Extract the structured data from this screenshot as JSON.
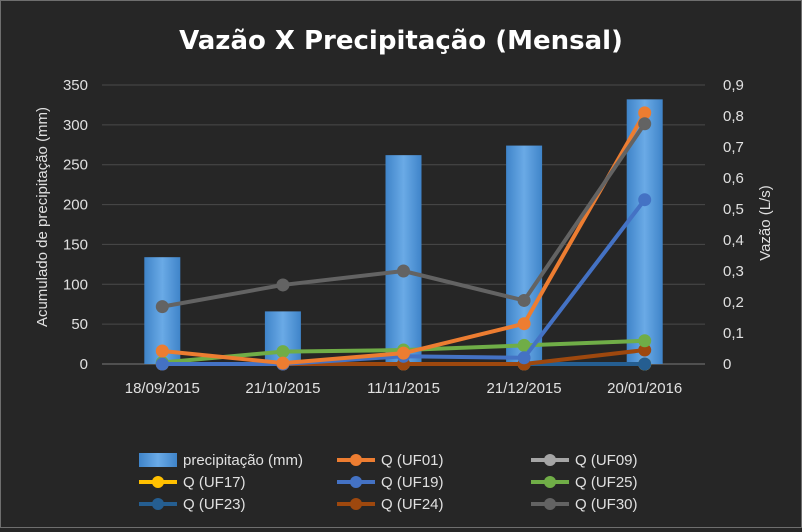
{
  "chart_data": {
    "type": "bar+line",
    "title": "Vazão X Precipitação (Mensal)",
    "categories": [
      "18/09/2015",
      "21/10/2015",
      "11/11/2015",
      "21/12/2015",
      "20/01/2016"
    ],
    "y_left": {
      "label": "Acumulado de precipitação (mm)",
      "min": 0,
      "max": 350,
      "step": 50,
      "ticks": [
        "0",
        "50",
        "100",
        "150",
        "200",
        "250",
        "300",
        "350"
      ]
    },
    "y_right": {
      "label": "Vazão (L/s)",
      "min": 0,
      "max": 0.9,
      "step": 0.1,
      "ticks": [
        "0",
        "0,1",
        "0,2",
        "0,3",
        "0,4",
        "0,5",
        "0,6",
        "0,7",
        "0,8",
        "0,9"
      ]
    },
    "grid": true,
    "legend_position": "bottom",
    "bars": {
      "name": "precipitação (mm)",
      "color": "#5b9bd5",
      "values": [
        134,
        66,
        262,
        274,
        332
      ]
    },
    "series": [
      {
        "name": "Q (UF01)",
        "color": "#ed7d31",
        "values": [
          0.042,
          0.003,
          0.035,
          0.13,
          0.81
        ]
      },
      {
        "name": "Q (UF09)",
        "color": "#a5a5a5",
        "values": [
          0.0,
          0.0,
          0.0,
          0.0,
          0.0
        ]
      },
      {
        "name": "Q (UF17)",
        "color": "#ffc000",
        "values": [
          0.0,
          0.0,
          0.0,
          0.0,
          0.0
        ]
      },
      {
        "name": "Q (UF19)",
        "color": "#4472c4",
        "values": [
          0.0,
          0.0,
          0.025,
          0.02,
          0.53
        ]
      },
      {
        "name": "Q (UF25)",
        "color": "#70ad47",
        "values": [
          0.005,
          0.04,
          0.045,
          0.06,
          0.075
        ]
      },
      {
        "name": "Q (UF23)",
        "color": "#255e91",
        "values": [
          0.0,
          0.0,
          0.0,
          0.0,
          0.0
        ]
      },
      {
        "name": "Q (UF24)",
        "color": "#9e480e",
        "values": [
          0.0,
          0.0,
          0.0,
          0.0,
          0.045
        ]
      },
      {
        "name": "Q (UF30)",
        "color": "#636363",
        "values": [
          0.185,
          0.255,
          0.3,
          0.205,
          0.775
        ]
      }
    ]
  }
}
